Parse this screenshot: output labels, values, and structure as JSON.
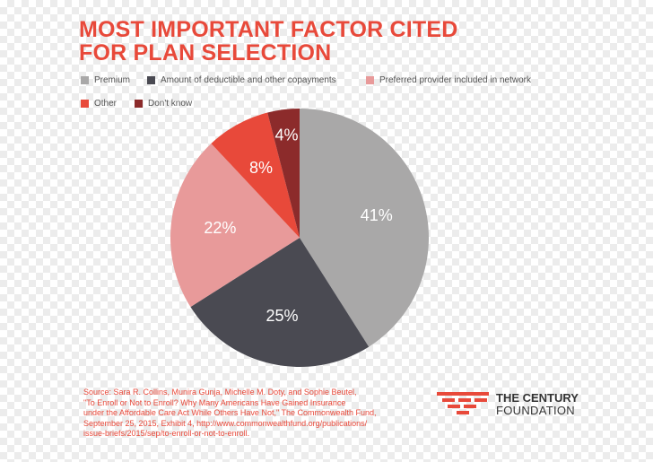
{
  "title_line1": "MOST IMPORTANT FACTOR CITED",
  "title_line2": "FOR PLAN SELECTION",
  "chart_data": {
    "type": "pie",
    "title": "MOST IMPORTANT FACTOR CITED FOR PLAN SELECTION",
    "labels": [
      "Premium",
      "Amount of deductible and other copayments",
      "Preferred provider included in network",
      "Other",
      "Don't know"
    ],
    "values": [
      41,
      25,
      22,
      8,
      4
    ],
    "display_labels": [
      "41%",
      "25%",
      "22%",
      "8%",
      "4%"
    ],
    "colors": [
      "#a9a8a8",
      "#4a4a52",
      "#e89a9a",
      "#e8493a",
      "#8c2b2b"
    ],
    "legend_placement": "top"
  },
  "source": {
    "line1": "Source: Sara R. Collins, Munira Gunja, Michelle M. Doty, and Sophie Beutel,",
    "line2": "\"To Enroll or Not to Enroll? Why Many Americans Have Gained Insurance",
    "line3": "under the Affordable Care Act While Others Have Not,\" The Commonwealth Fund,",
    "line4": "September 25, 2015, Exhibit 4, http://www.commonwealthfund.org/publications/",
    "line5": "issue-briefs/2015/sep/to-enroll-or-not-to-enroll."
  },
  "logo": {
    "line1": "THE CENTURY",
    "line2": "FOUNDATION",
    "color": "#e8493a"
  }
}
